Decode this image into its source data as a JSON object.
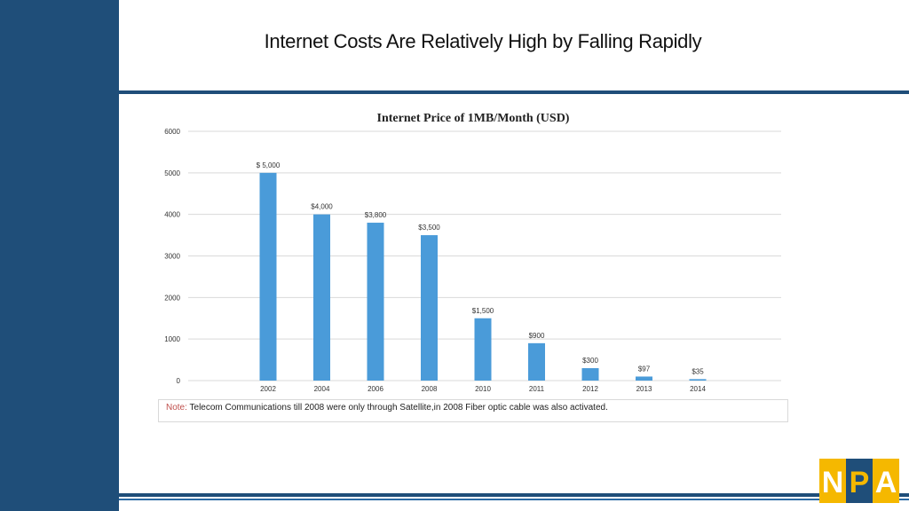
{
  "slide": {
    "title": "Internet Costs Are Relatively High by Falling Rapidly"
  },
  "note": {
    "label": "Note:",
    "text": " Telecom Communications till 2008 were only through Satellite,in 2008 Fiber optic cable was also activated."
  },
  "logo": {
    "letters": [
      "N",
      "P",
      "A"
    ],
    "colors": {
      "primary": "#1f4e79",
      "accent": "#f5b800"
    }
  },
  "colors": {
    "sidebar": "#1f4e79",
    "bar": "#4a9bd9",
    "grid": "#d9d9d9",
    "note_label": "#c0504d"
  },
  "chart_data": {
    "type": "bar",
    "title": "Internet Price of 1MB/Month (USD)",
    "xlabel": "",
    "ylabel": "",
    "categories": [
      "2002",
      "2004",
      "2006",
      "2008",
      "2010",
      "2011",
      "2012",
      "2013",
      "2014"
    ],
    "values": [
      5000,
      4000,
      3800,
      3500,
      1500,
      900,
      300,
      97,
      35
    ],
    "data_labels": [
      "$ 5,000",
      "$4,000",
      "$3,800",
      "$3,500",
      "$1,500",
      "$900",
      "$300",
      "$97",
      "$35"
    ],
    "ylim": [
      0,
      6000
    ],
    "yticks": [
      "0",
      "1000",
      "2000",
      "3000",
      "4000",
      "5000",
      "6000"
    ],
    "grid": true,
    "legend": "none"
  }
}
